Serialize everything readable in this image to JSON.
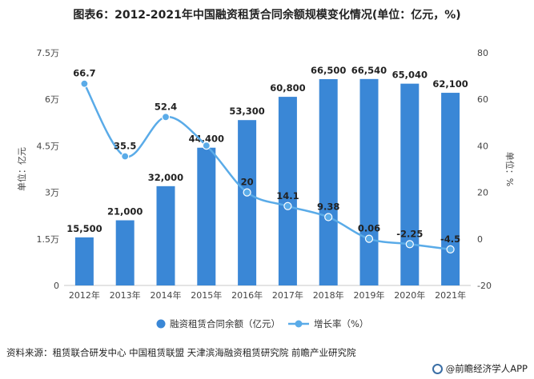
{
  "title": "图表6：2012-2021年中国融资租赁合同余额规模变化情况(单位：亿元，%)",
  "source": "资料来源：租赁联合研发中心 中国租赁联盟 天津滨海融资租赁研究院 前瞻产业研究院",
  "brand": "@前瞻经济学人APP",
  "chart_data": {
    "type": "bar",
    "categories": [
      "2012年",
      "2013年",
      "2014年",
      "2015年",
      "2016年",
      "2017年",
      "2018年",
      "2019年",
      "2020年",
      "2021年"
    ],
    "series": [
      {
        "name": "融资租赁合同余额（亿元）",
        "type": "bar",
        "axis": "left",
        "color": "#3a87d6",
        "values": [
          15500,
          21000,
          32000,
          44400,
          53300,
          60800,
          66500,
          66540,
          65040,
          62100
        ],
        "labels": [
          "15,500",
          "21,000",
          "32,000",
          "44,400",
          "53,300",
          "60,800",
          "66,500",
          "66,540",
          "65,040",
          "62,100"
        ]
      },
      {
        "name": "增长率（%）",
        "type": "line",
        "axis": "right",
        "color": "#5aabe8",
        "values": [
          66.7,
          35.5,
          52.4,
          40.1,
          20,
          14.1,
          9.38,
          0.06,
          -2.25,
          -4.5
        ],
        "labels": [
          "66.7",
          "35.5",
          "52.4",
          "",
          "20",
          "14.1",
          "9.38",
          "0.06",
          "-2.25",
          "-4.5"
        ]
      }
    ],
    "y_left": {
      "label": "单位：亿元",
      "ylim": [
        0,
        75000
      ],
      "ticks": [
        0,
        15000,
        30000,
        45000,
        60000,
        75000
      ],
      "tick_labels": [
        "0",
        "1.5万",
        "3万",
        "4.5万",
        "6万",
        "7.5万"
      ]
    },
    "y_right": {
      "label": "单位：%",
      "ylim": [
        -20,
        80
      ],
      "ticks": [
        -20,
        0,
        20,
        40,
        60,
        80
      ],
      "tick_labels": [
        "-20",
        "0",
        "20",
        "40",
        "60",
        "80"
      ]
    },
    "grid": false,
    "legend_position": "bottom"
  }
}
